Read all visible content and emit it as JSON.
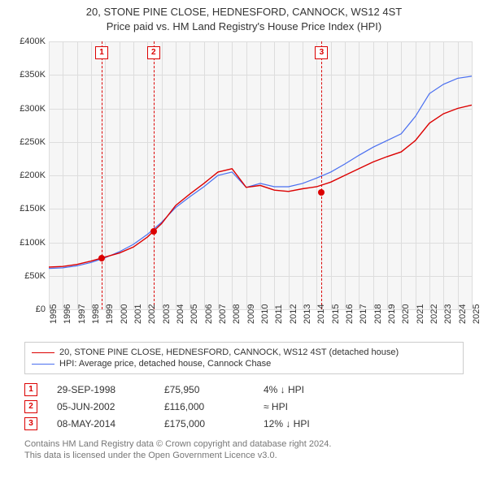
{
  "title_line1": "20, STONE PINE CLOSE, HEDNESFORD, CANNOCK, WS12 4ST",
  "title_line2": "Price paid vs. HM Land Registry's House Price Index (HPI)",
  "chart": {
    "type": "line",
    "background_color": "#f6f6f6",
    "grid_color": "#dddddd",
    "x": {
      "min": 1995,
      "max": 2025,
      "ticks": [
        1995,
        1996,
        1997,
        1998,
        1999,
        2000,
        2001,
        2002,
        2003,
        2004,
        2005,
        2006,
        2007,
        2008,
        2009,
        2010,
        2011,
        2012,
        2013,
        2014,
        2015,
        2016,
        2017,
        2018,
        2019,
        2020,
        2021,
        2022,
        2023,
        2024,
        2025
      ]
    },
    "y": {
      "min": 0,
      "max": 400000,
      "ticks": [
        0,
        50000,
        100000,
        150000,
        200000,
        250000,
        300000,
        350000,
        400000
      ],
      "tick_labels": [
        "£0",
        "£50K",
        "£100K",
        "£150K",
        "£200K",
        "£250K",
        "£300K",
        "£350K",
        "£400K"
      ]
    },
    "series": {
      "subject": {
        "color": "#dc0000",
        "width": 1.4,
        "points": [
          [
            1995,
            63000
          ],
          [
            1996,
            64000
          ],
          [
            1997,
            67000
          ],
          [
            1998,
            72000
          ],
          [
            1999,
            78000
          ],
          [
            2000,
            84000
          ],
          [
            2001,
            93000
          ],
          [
            2002,
            108000
          ],
          [
            2003,
            128000
          ],
          [
            2004,
            155000
          ],
          [
            2005,
            172000
          ],
          [
            2006,
            188000
          ],
          [
            2007,
            205000
          ],
          [
            2008,
            210000
          ],
          [
            2009,
            182000
          ],
          [
            2010,
            185000
          ],
          [
            2011,
            178000
          ],
          [
            2012,
            176000
          ],
          [
            2013,
            180000
          ],
          [
            2014,
            183000
          ],
          [
            2015,
            190000
          ],
          [
            2016,
            200000
          ],
          [
            2017,
            210000
          ],
          [
            2018,
            220000
          ],
          [
            2019,
            228000
          ],
          [
            2020,
            235000
          ],
          [
            2021,
            252000
          ],
          [
            2022,
            278000
          ],
          [
            2023,
            292000
          ],
          [
            2024,
            300000
          ],
          [
            2025,
            305000
          ]
        ]
      },
      "hpi": {
        "color": "#4a6ff0",
        "width": 1.2,
        "points": [
          [
            1995,
            61000
          ],
          [
            1996,
            62000
          ],
          [
            1997,
            65000
          ],
          [
            1998,
            70000
          ],
          [
            1999,
            77000
          ],
          [
            2000,
            86000
          ],
          [
            2001,
            97000
          ],
          [
            2002,
            112000
          ],
          [
            2003,
            130000
          ],
          [
            2004,
            152000
          ],
          [
            2005,
            168000
          ],
          [
            2006,
            183000
          ],
          [
            2007,
            200000
          ],
          [
            2008,
            205000
          ],
          [
            2009,
            182000
          ],
          [
            2010,
            188000
          ],
          [
            2011,
            183000
          ],
          [
            2012,
            183000
          ],
          [
            2013,
            188000
          ],
          [
            2014,
            196000
          ],
          [
            2015,
            205000
          ],
          [
            2016,
            217000
          ],
          [
            2017,
            230000
          ],
          [
            2018,
            242000
          ],
          [
            2019,
            252000
          ],
          [
            2020,
            262000
          ],
          [
            2021,
            288000
          ],
          [
            2022,
            322000
          ],
          [
            2023,
            336000
          ],
          [
            2024,
            345000
          ],
          [
            2025,
            348000
          ]
        ]
      }
    },
    "markers": [
      {
        "n": "1",
        "x": 1998.75,
        "y": 75950,
        "color": "#dc0000"
      },
      {
        "n": "2",
        "x": 2002.43,
        "y": 116000,
        "color": "#dc0000"
      },
      {
        "n": "3",
        "x": 2014.35,
        "y": 175000,
        "color": "#dc0000"
      }
    ]
  },
  "legend": {
    "r1": {
      "color": "#dc0000",
      "label": "20, STONE PINE CLOSE, HEDNESFORD, CANNOCK, WS12 4ST (detached house)"
    },
    "r2": {
      "color": "#4a6ff0",
      "label": "HPI: Average price, detached house, Cannock Chase"
    }
  },
  "sales": [
    {
      "n": "1",
      "date": "29-SEP-1998",
      "price": "£75,950",
      "delta": "4% ↓ HPI"
    },
    {
      "n": "2",
      "date": "05-JUN-2002",
      "price": "£116,000",
      "delta": "≈ HPI"
    },
    {
      "n": "3",
      "date": "08-MAY-2014",
      "price": "£175,000",
      "delta": "12% ↓ HPI"
    }
  ],
  "credit1": "Contains HM Land Registry data © Crown copyright and database right 2024.",
  "credit2": "This data is licensed under the Open Government Licence v3.0."
}
